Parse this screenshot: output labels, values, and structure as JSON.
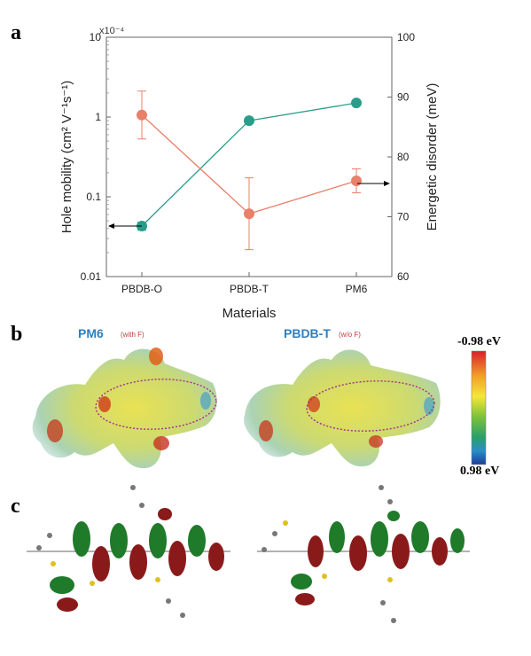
{
  "panel_labels": {
    "a": "a",
    "b": "b",
    "c": "c"
  },
  "chart_data": {
    "type": "line",
    "categories": [
      "PBDB-O",
      "PBDB-T",
      "PM6"
    ],
    "xlabel": "Materials",
    "ylabel_left": "Hole mobility (cm² V⁻¹s⁻¹)",
    "ylabel_right": "Energetic disorder (meV)",
    "y_left_scale": "log",
    "y_left_multiplier": "x10⁻⁴",
    "y_left_range": [
      0.01,
      10
    ],
    "y_left_ticks": [
      "10",
      "1",
      "0.1",
      "0.01"
    ],
    "y_right_range": [
      60,
      100
    ],
    "y_right_ticks": [
      "100",
      "90",
      "80",
      "70",
      "60"
    ],
    "series": [
      {
        "axis": "left",
        "color": "#2a9d8a",
        "values": [
          0.043,
          0.9,
          1.5
        ],
        "err": [
          0.005,
          0,
          0
        ]
      },
      {
        "axis": "right",
        "color": "#e8806a",
        "values": [
          87,
          70.5,
          76
        ],
        "err": [
          4,
          6,
          2
        ]
      }
    ],
    "arrows": {
      "left_series": "points-left",
      "right_series": "points-right"
    }
  },
  "panel_b": {
    "left_title": "PM6",
    "left_sub": "(with F)",
    "right_title": "PBDB-T",
    "right_sub": "(w/o F)",
    "colorbar_top": "-0.98 eV",
    "colorbar_bottom": "0.98 eV"
  }
}
